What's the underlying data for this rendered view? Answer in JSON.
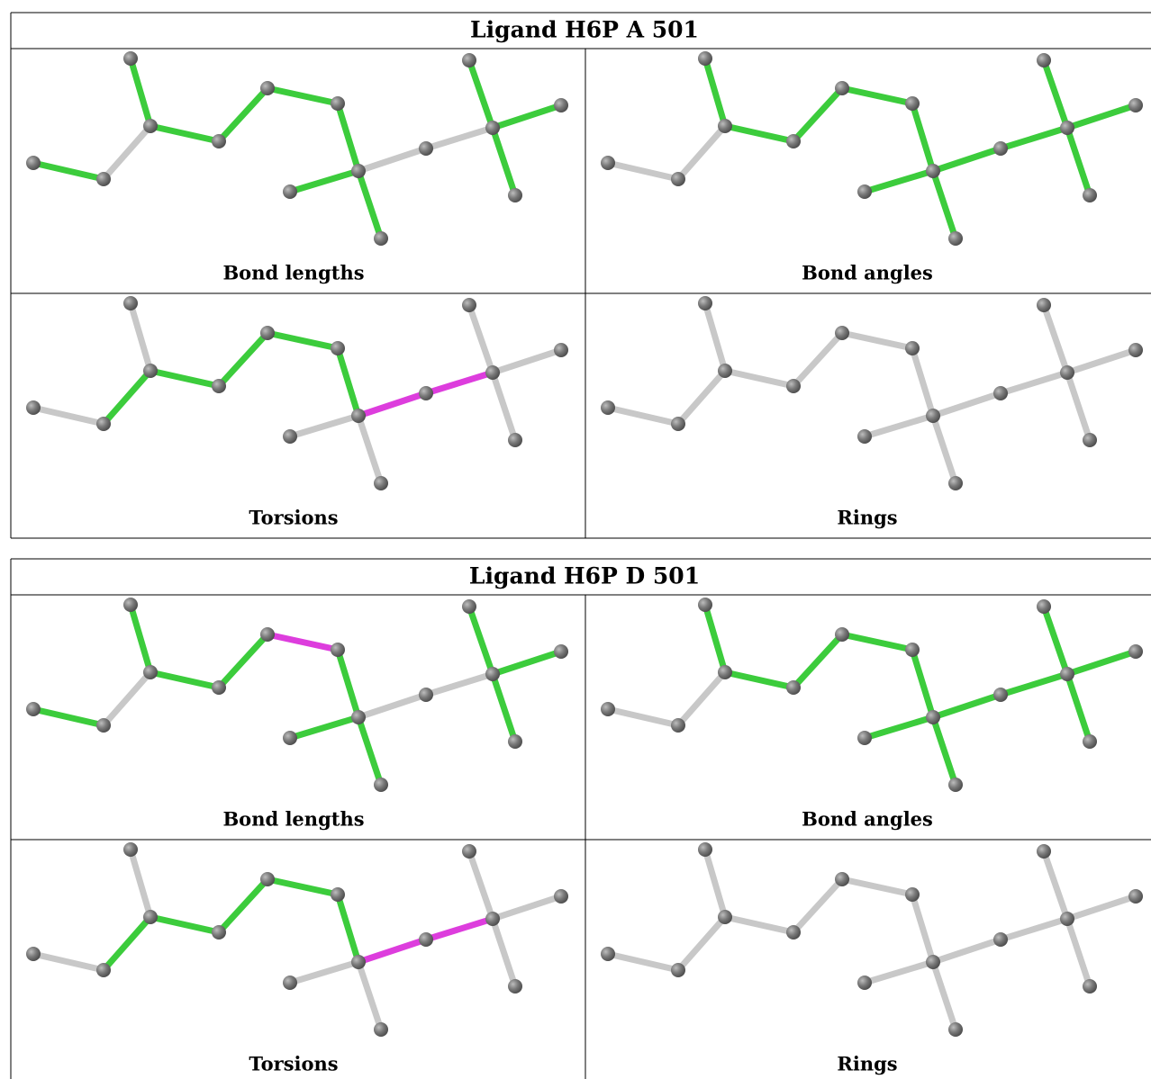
{
  "tables": [
    {
      "title": "Ligand H6P A 501",
      "panels": [
        "Bond lengths",
        "Bond angles",
        "Torsions",
        "Rings"
      ]
    },
    {
      "title": "Ligand H6P D 501",
      "panels": [
        "Bond lengths",
        "Bond angles",
        "Torsions",
        "Rings"
      ]
    }
  ]
}
